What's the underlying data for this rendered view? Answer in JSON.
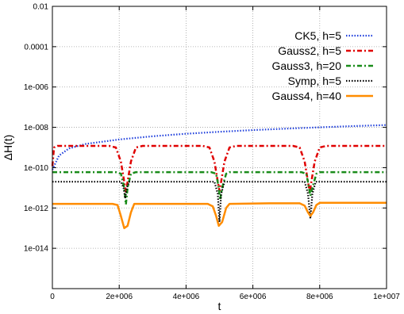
{
  "chart_data": {
    "type": "line",
    "title": "",
    "xlabel": "t",
    "ylabel": "ΔH(t)",
    "x_range": [
      0,
      10000000
    ],
    "y_log_range": [
      1e-16,
      0.01
    ],
    "y_scale": "log",
    "grid": true,
    "legend_placement": "top-right",
    "x_ticks": [
      {
        "value": 0,
        "label": "0"
      },
      {
        "value": 2000000,
        "label": "2e+006"
      },
      {
        "value": 4000000,
        "label": "4e+006"
      },
      {
        "value": 6000000,
        "label": "6e+006"
      },
      {
        "value": 8000000,
        "label": "8e+006"
      },
      {
        "value": 10000000,
        "label": "1e+007"
      }
    ],
    "y_ticks": [
      {
        "value": 0.01,
        "label": "0.01"
      },
      {
        "value": 0.0001,
        "label": "0.0001"
      },
      {
        "value": 1e-06,
        "label": "1e-006"
      },
      {
        "value": 1e-08,
        "label": "1e-008"
      },
      {
        "value": 1e-10,
        "label": "1e-010"
      },
      {
        "value": 1e-12,
        "label": "1e-012"
      },
      {
        "value": 1e-14,
        "label": "1e-014"
      }
    ],
    "series": [
      {
        "name": "CK5, h=5",
        "color": "#1f3fdc",
        "style": "dotted",
        "points": [
          [
            0,
            8e-11
          ],
          [
            200000,
            4e-10
          ],
          [
            500000,
            9e-10
          ],
          [
            1000000,
            1.5e-09
          ],
          [
            2000000,
            2.5e-09
          ],
          [
            3000000,
            3.6e-09
          ],
          [
            4000000,
            4.8e-09
          ],
          [
            5000000,
            6e-09
          ],
          [
            6000000,
            7.3e-09
          ],
          [
            7000000,
            8.6e-09
          ],
          [
            8000000,
            1e-08
          ],
          [
            9000000,
            1.15e-08
          ],
          [
            10000000,
            1.3e-08
          ]
        ]
      },
      {
        "name": "Gauss2, h=5",
        "color": "#e00000",
        "style": "dash-dot",
        "points": [
          [
            0,
            1.2e-10
          ],
          [
            50000,
            1e-09
          ],
          [
            150000,
            1.2e-09
          ],
          [
            1700000,
            1.2e-09
          ],
          [
            1900000,
            1e-09
          ],
          [
            2050000,
            2e-10
          ],
          [
            2150000,
            2e-11
          ],
          [
            2200000,
            6e-12
          ],
          [
            2250000,
            2e-11
          ],
          [
            2350000,
            2e-10
          ],
          [
            2500000,
            1e-09
          ],
          [
            2700000,
            1.2e-09
          ],
          [
            4500000,
            1.2e-09
          ],
          [
            4700000,
            1e-09
          ],
          [
            4850000,
            2e-10
          ],
          [
            4950000,
            2e-11
          ],
          [
            5000000,
            7e-12
          ],
          [
            5050000,
            2e-11
          ],
          [
            5150000,
            2e-10
          ],
          [
            5300000,
            1e-09
          ],
          [
            5500000,
            1.2e-09
          ],
          [
            7200000,
            1.2e-09
          ],
          [
            7400000,
            1e-09
          ],
          [
            7550000,
            2e-10
          ],
          [
            7650000,
            2e-11
          ],
          [
            7700000,
            6e-12
          ],
          [
            7750000,
            2e-11
          ],
          [
            7850000,
            2e-10
          ],
          [
            8000000,
            1e-09
          ],
          [
            8200000,
            1.2e-09
          ],
          [
            10000000,
            1.2e-09
          ]
        ]
      },
      {
        "name": "Gauss3, h=20",
        "color": "#1a8c1a",
        "style": "dash-dot",
        "points": [
          [
            0,
            6e-11
          ],
          [
            1900000,
            6e-11
          ],
          [
            2050000,
            5e-11
          ],
          [
            2150000,
            1e-11
          ],
          [
            2200000,
            1.5e-12
          ],
          [
            2250000,
            1e-11
          ],
          [
            2350000,
            5e-11
          ],
          [
            2500000,
            6e-11
          ],
          [
            4750000,
            6e-11
          ],
          [
            4900000,
            5e-11
          ],
          [
            4980000,
            1e-11
          ],
          [
            5020000,
            2.5e-12
          ],
          [
            5080000,
            1e-11
          ],
          [
            5200000,
            5e-11
          ],
          [
            5300000,
            6e-11
          ],
          [
            7450000,
            6e-11
          ],
          [
            7600000,
            5e-11
          ],
          [
            7680000,
            1e-11
          ],
          [
            7720000,
            4e-12
          ],
          [
            7780000,
            1e-11
          ],
          [
            7900000,
            5e-11
          ],
          [
            8000000,
            6e-11
          ],
          [
            10000000,
            6e-11
          ]
        ]
      },
      {
        "name": "Symp, h=5",
        "color": "#000000",
        "style": "dotted",
        "points": [
          [
            0,
            2e-11
          ],
          [
            2050000,
            2e-11
          ],
          [
            2130000,
            1e-11
          ],
          [
            2180000,
            3e-12
          ],
          [
            2230000,
            1e-11
          ],
          [
            2300000,
            2e-11
          ],
          [
            4850000,
            2e-11
          ],
          [
            4950000,
            5e-12
          ],
          [
            5000000,
            2e-13
          ],
          [
            5050000,
            5e-12
          ],
          [
            5150000,
            2e-11
          ],
          [
            7550000,
            2e-11
          ],
          [
            7650000,
            5e-12
          ],
          [
            7720000,
            3e-13
          ],
          [
            7780000,
            5e-12
          ],
          [
            7880000,
            2e-11
          ],
          [
            10000000,
            2e-11
          ]
        ]
      },
      {
        "name": "Gauss4, h=40",
        "color": "#ff8c00",
        "style": "solid",
        "points": [
          [
            0,
            1.6e-12
          ],
          [
            1800000,
            1.6e-12
          ],
          [
            1950000,
            1.4e-12
          ],
          [
            2050000,
            4e-13
          ],
          [
            2150000,
            1e-13
          ],
          [
            2250000,
            1.3e-13
          ],
          [
            2350000,
            6e-13
          ],
          [
            2450000,
            1.6e-12
          ],
          [
            4650000,
            1.6e-12
          ],
          [
            4800000,
            1.2e-12
          ],
          [
            4900000,
            4e-13
          ],
          [
            4980000,
            1.3e-13
          ],
          [
            5080000,
            2e-13
          ],
          [
            5200000,
            1e-12
          ],
          [
            5300000,
            1.6e-12
          ],
          [
            6500000,
            1.7e-12
          ],
          [
            7400000,
            1.7e-12
          ],
          [
            7550000,
            1.3e-12
          ],
          [
            7650000,
            6e-13
          ],
          [
            7720000,
            4e-13
          ],
          [
            7800000,
            6e-13
          ],
          [
            7900000,
            1.4e-12
          ],
          [
            8000000,
            1.8e-12
          ],
          [
            10000000,
            1.8e-12
          ]
        ]
      }
    ]
  }
}
